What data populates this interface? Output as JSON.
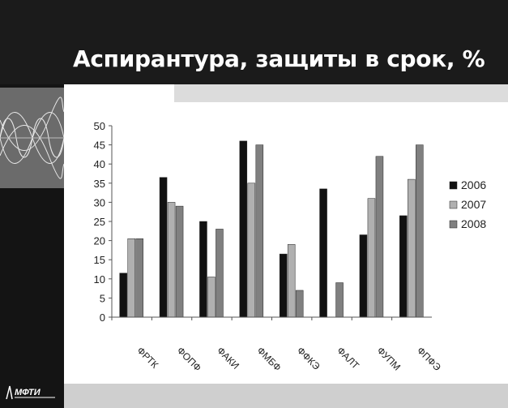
{
  "slide": {
    "title": "Аспирантура, защиты в срок, %",
    "logo_text": "МФТИ"
  },
  "chart_data": {
    "type": "bar",
    "title": "",
    "xlabel": "",
    "ylabel": "",
    "ylim": [
      0,
      50
    ],
    "yticks": [
      0,
      5,
      10,
      15,
      20,
      25,
      30,
      35,
      40,
      45,
      50
    ],
    "categories": [
      "ФРТК",
      "ФОПФ",
      "ФАКИ",
      "ФМБФ",
      "ФФКЭ",
      "ФАЛТ",
      "ФУПМ",
      "ФПФЭ"
    ],
    "series": [
      {
        "name": "2006",
        "color": "#111111",
        "values": [
          11.5,
          36.5,
          25,
          46,
          16.5,
          33.5,
          21.5,
          26.5
        ]
      },
      {
        "name": "2007",
        "color": "#b0b0b0",
        "values": [
          20.5,
          30,
          10.5,
          35,
          19,
          0,
          31,
          36
        ]
      },
      {
        "name": "2008",
        "color": "#808080",
        "values": [
          20.5,
          29,
          23,
          45,
          7,
          9,
          42,
          45
        ]
      }
    ],
    "legend_position": "right",
    "grid": false
  }
}
